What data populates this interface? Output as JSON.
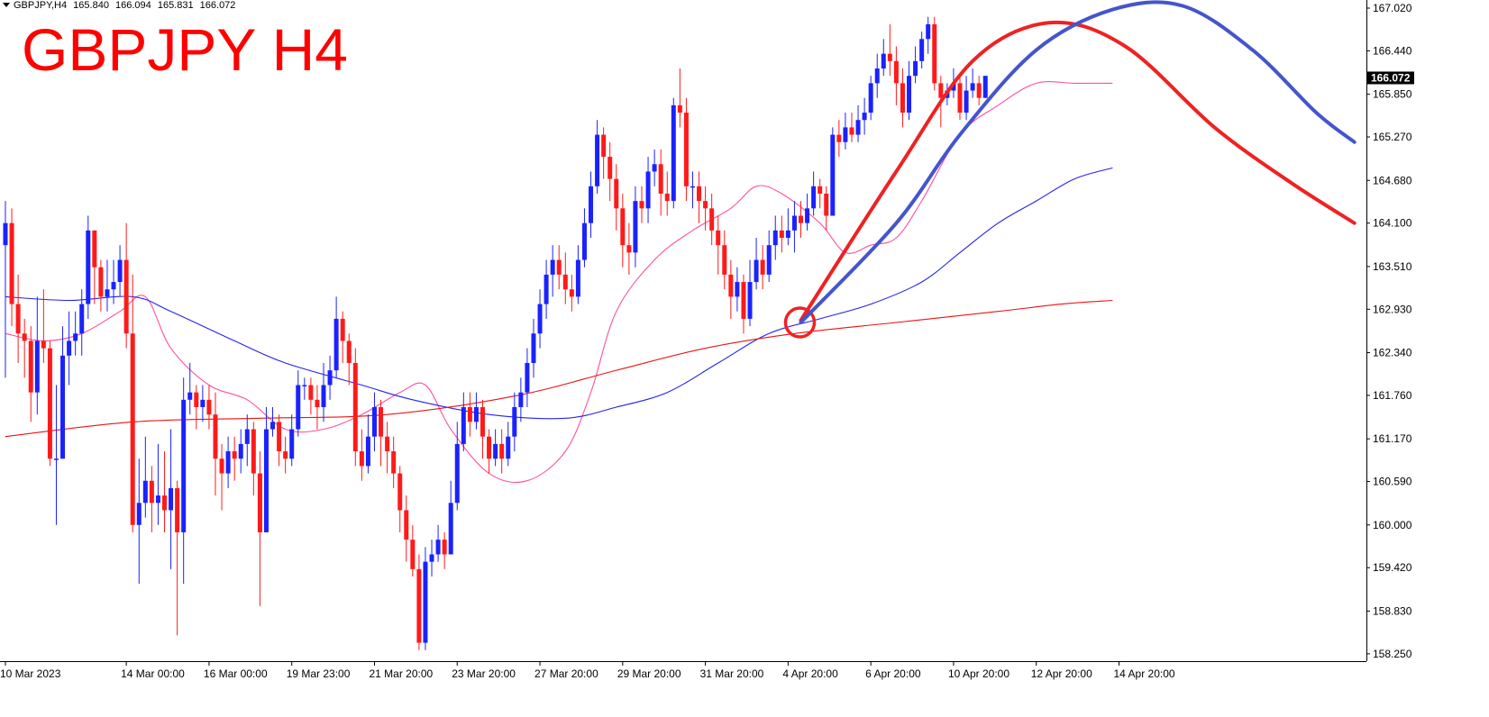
{
  "header": {
    "symbol": "GBPJPY,H4",
    "open": "165.840",
    "high": "166.094",
    "low": "165.831",
    "close": "166.072"
  },
  "title": "GBPJPY H4",
  "current_price_label": "166.072",
  "colors": {
    "bull": "#1a22ff",
    "bear": "#ff1a1a",
    "ma_fast": "#ff4fa0",
    "ma_mid": "#2222ee",
    "ma_slow": "#ee1111",
    "arc_red": "#ee2222",
    "arc_blue": "#4455cc",
    "price_tag": "#000000"
  },
  "chart_data": {
    "type": "candlestick",
    "y_ticks": [
      "167.020",
      "166.440",
      "165.850",
      "165.270",
      "164.680",
      "164.100",
      "163.510",
      "162.930",
      "162.340",
      "161.760",
      "161.170",
      "160.590",
      "160.000",
      "159.420",
      "158.830",
      "158.250"
    ],
    "ylim": [
      158.15,
      167.13
    ],
    "x_ticks": [
      {
        "label": "10 Mar 2023",
        "index": 0
      },
      {
        "label": "14 Mar 00:00",
        "index": 19
      },
      {
        "label": "16 Mar 00:00",
        "index": 32
      },
      {
        "label": "19 Mar 23:00",
        "index": 45
      },
      {
        "label": "21 Mar 20:00",
        "index": 58
      },
      {
        "label": "23 Mar 20:00",
        "index": 71
      },
      {
        "label": "27 Mar 20:00",
        "index": 84
      },
      {
        "label": "29 Mar 20:00",
        "index": 97
      },
      {
        "label": "31 Mar 20:00",
        "index": 110
      },
      {
        "label": "4 Apr 20:00",
        "index": 123
      },
      {
        "label": "6 Apr 20:00",
        "index": 136
      },
      {
        "label": "10 Apr 20:00",
        "index": 149
      },
      {
        "label": "12 Apr 20:00",
        "index": 162
      },
      {
        "label": "14 Apr 20:00",
        "index": 175
      }
    ],
    "indicators": [
      {
        "name": "fast MA",
        "color_key": "ma_fast",
        "points": [
          [
            0,
            162.6
          ],
          [
            6,
            162.5
          ],
          [
            12,
            162.6
          ],
          [
            18,
            162.9
          ],
          [
            22,
            163.1
          ],
          [
            26,
            162.4
          ],
          [
            32,
            161.9
          ],
          [
            38,
            161.7
          ],
          [
            44,
            161.3
          ],
          [
            50,
            161.3
          ],
          [
            56,
            161.5
          ],
          [
            62,
            161.8
          ],
          [
            66,
            161.9
          ],
          [
            70,
            161.3
          ],
          [
            76,
            160.7
          ],
          [
            82,
            160.6
          ],
          [
            88,
            161.0
          ],
          [
            92,
            161.8
          ],
          [
            96,
            162.9
          ],
          [
            102,
            163.6
          ],
          [
            108,
            164.0
          ],
          [
            114,
            164.3
          ],
          [
            118,
            164.6
          ],
          [
            122,
            164.5
          ],
          [
            128,
            164.1
          ],
          [
            132,
            163.7
          ],
          [
            136,
            163.8
          ],
          [
            140,
            163.9
          ],
          [
            144,
            164.4
          ],
          [
            150,
            165.3
          ],
          [
            156,
            165.7
          ],
          [
            162,
            166.0
          ],
          [
            168,
            166.0
          ],
          [
            174,
            166.0
          ]
        ]
      },
      {
        "name": "mid MA",
        "color_key": "ma_mid",
        "points": [
          [
            0,
            163.1
          ],
          [
            10,
            163.05
          ],
          [
            20,
            163.1
          ],
          [
            26,
            162.9
          ],
          [
            36,
            162.5
          ],
          [
            44,
            162.2
          ],
          [
            56,
            161.9
          ],
          [
            64,
            161.7
          ],
          [
            76,
            161.5
          ],
          [
            88,
            161.45
          ],
          [
            96,
            161.6
          ],
          [
            104,
            161.8
          ],
          [
            112,
            162.2
          ],
          [
            120,
            162.6
          ],
          [
            128,
            162.8
          ],
          [
            136,
            163.0
          ],
          [
            144,
            163.3
          ],
          [
            150,
            163.7
          ],
          [
            156,
            164.1
          ],
          [
            162,
            164.4
          ],
          [
            168,
            164.7
          ],
          [
            174,
            164.85
          ]
        ]
      },
      {
        "name": "slow MA",
        "color_key": "ma_slow",
        "points": [
          [
            0,
            161.2
          ],
          [
            20,
            161.4
          ],
          [
            40,
            161.45
          ],
          [
            60,
            161.5
          ],
          [
            80,
            161.75
          ],
          [
            96,
            162.1
          ],
          [
            110,
            162.4
          ],
          [
            124,
            162.6
          ],
          [
            140,
            162.75
          ],
          [
            156,
            162.9
          ],
          [
            166,
            163.0
          ],
          [
            174,
            163.05
          ]
        ]
      }
    ],
    "annotations": [
      {
        "kind": "circle",
        "index": 125,
        "price": 162.75
      },
      {
        "kind": "arc",
        "color_key": "arc_red",
        "points": [
          [
            125,
            162.78
          ],
          [
            140,
            164.8
          ],
          [
            152,
            166.3
          ],
          [
            164,
            166.82
          ],
          [
            176,
            166.5
          ],
          [
            190,
            165.4
          ],
          [
            202,
            164.65
          ],
          [
            212,
            164.1
          ]
        ]
      },
      {
        "kind": "arc",
        "color_key": "arc_blue",
        "points": [
          [
            125,
            162.75
          ],
          [
            140,
            164.1
          ],
          [
            150,
            165.3
          ],
          [
            162,
            166.45
          ],
          [
            174,
            167.0
          ],
          [
            185,
            167.05
          ],
          [
            196,
            166.45
          ],
          [
            206,
            165.6
          ],
          [
            212,
            165.2
          ]
        ]
      }
    ],
    "candles": [
      [
        163.8,
        164.1,
        164.4,
        162.0
      ],
      [
        164.1,
        163.0,
        164.3,
        162.7
      ],
      [
        163.0,
        162.6,
        163.4,
        162.2
      ],
      [
        162.6,
        162.5,
        162.8,
        162.0
      ],
      [
        162.5,
        161.8,
        162.7,
        161.4
      ],
      [
        161.8,
        162.5,
        163.1,
        161.5
      ],
      [
        162.5,
        162.4,
        163.2,
        162.2
      ],
      [
        162.4,
        160.9,
        162.5,
        160.8
      ],
      [
        160.9,
        160.9,
        161.9,
        160.0
      ],
      [
        160.9,
        162.3,
        162.7,
        160.9
      ],
      [
        162.3,
        162.5,
        162.9,
        161.9
      ],
      [
        162.5,
        162.6,
        162.9,
        162.3
      ],
      [
        162.6,
        163.0,
        163.2,
        162.3
      ],
      [
        163.0,
        164.0,
        164.2,
        162.8
      ],
      [
        164.0,
        163.5,
        164.0,
        163.0
      ],
      [
        163.5,
        163.1,
        163.6,
        162.9
      ],
      [
        163.1,
        163.2,
        163.6,
        162.9
      ],
      [
        163.2,
        163.3,
        163.6,
        163.0
      ],
      [
        163.3,
        163.6,
        163.8,
        163.1
      ],
      [
        163.6,
        162.6,
        164.1,
        162.4
      ],
      [
        162.6,
        160.0,
        163.4,
        159.9
      ],
      [
        160.0,
        160.3,
        160.9,
        159.2
      ],
      [
        160.3,
        160.6,
        161.2,
        160.1
      ],
      [
        160.6,
        160.3,
        160.8,
        159.9
      ],
      [
        160.3,
        160.4,
        161.1,
        160.0
      ],
      [
        160.4,
        160.2,
        161.0,
        159.9
      ],
      [
        160.2,
        160.5,
        161.3,
        159.4
      ],
      [
        160.5,
        159.9,
        160.6,
        158.5
      ],
      [
        159.9,
        161.7,
        162.0,
        159.2
      ],
      [
        161.7,
        161.8,
        162.2,
        161.5
      ],
      [
        161.8,
        161.6,
        161.9,
        161.3
      ],
      [
        161.6,
        161.7,
        161.9,
        161.4
      ],
      [
        161.7,
        161.5,
        161.9,
        161.3
      ],
      [
        161.5,
        160.9,
        161.8,
        160.4
      ],
      [
        160.9,
        160.7,
        161.1,
        160.2
      ],
      [
        160.7,
        161.0,
        161.2,
        160.5
      ],
      [
        161.0,
        160.9,
        161.2,
        160.6
      ],
      [
        160.9,
        161.1,
        161.3,
        160.7
      ],
      [
        161.1,
        161.3,
        161.5,
        160.8
      ],
      [
        161.3,
        160.7,
        161.4,
        160.4
      ],
      [
        160.7,
        159.9,
        161.0,
        158.9
      ],
      [
        159.9,
        161.3,
        161.6,
        159.9
      ],
      [
        161.3,
        161.4,
        161.6,
        161.2
      ],
      [
        161.4,
        161.0,
        161.5,
        160.8
      ],
      [
        161.0,
        160.9,
        161.2,
        160.7
      ],
      [
        160.9,
        161.3,
        161.5,
        160.8
      ],
      [
        161.3,
        161.9,
        162.1,
        161.2
      ],
      [
        161.9,
        161.9,
        162.0,
        161.7
      ],
      [
        161.9,
        161.7,
        162.0,
        161.5
      ],
      [
        161.7,
        161.6,
        161.9,
        161.3
      ],
      [
        161.6,
        161.9,
        162.2,
        161.4
      ],
      [
        161.9,
        162.1,
        162.3,
        161.7
      ],
      [
        162.1,
        162.8,
        163.1,
        162.0
      ],
      [
        162.8,
        162.5,
        162.9,
        162.2
      ],
      [
        162.5,
        162.2,
        162.6,
        161.9
      ],
      [
        162.2,
        161.0,
        162.4,
        160.8
      ],
      [
        161.0,
        160.8,
        161.3,
        160.6
      ],
      [
        160.8,
        161.2,
        161.5,
        160.7
      ],
      [
        161.2,
        161.6,
        161.8,
        161.0
      ],
      [
        161.6,
        161.2,
        161.7,
        160.8
      ],
      [
        161.2,
        161.0,
        161.4,
        160.7
      ],
      [
        161.0,
        160.7,
        161.2,
        160.5
      ],
      [
        160.7,
        160.2,
        160.8,
        159.9
      ],
      [
        160.2,
        159.8,
        160.4,
        159.5
      ],
      [
        159.8,
        159.4,
        160.0,
        159.3
      ],
      [
        159.4,
        158.4,
        159.6,
        158.3
      ],
      [
        158.4,
        159.5,
        159.7,
        158.3
      ],
      [
        159.5,
        159.6,
        159.8,
        159.3
      ],
      [
        159.6,
        159.8,
        160.0,
        159.5
      ],
      [
        159.8,
        159.6,
        159.9,
        159.4
      ],
      [
        159.6,
        160.3,
        160.6,
        159.6
      ],
      [
        160.3,
        161.1,
        161.4,
        160.2
      ],
      [
        161.1,
        161.6,
        161.8,
        161.0
      ],
      [
        161.6,
        161.4,
        161.8,
        161.2
      ],
      [
        161.4,
        161.6,
        161.8,
        161.3
      ],
      [
        161.6,
        161.2,
        161.7,
        160.9
      ],
      [
        161.2,
        160.9,
        161.3,
        160.7
      ],
      [
        160.9,
        161.1,
        161.3,
        160.8
      ],
      [
        161.1,
        160.9,
        161.3,
        160.7
      ],
      [
        160.9,
        161.2,
        161.4,
        160.8
      ],
      [
        161.2,
        161.6,
        161.8,
        161.0
      ],
      [
        161.6,
        161.8,
        162.0,
        161.4
      ],
      [
        161.8,
        162.2,
        162.4,
        161.6
      ],
      [
        162.2,
        162.6,
        162.8,
        162.0
      ],
      [
        162.6,
        163.0,
        163.2,
        162.4
      ],
      [
        163.0,
        163.4,
        163.6,
        162.8
      ],
      [
        163.4,
        163.6,
        163.8,
        163.1
      ],
      [
        163.6,
        163.4,
        163.8,
        163.2
      ],
      [
        163.4,
        163.2,
        163.7,
        163.0
      ],
      [
        163.2,
        163.1,
        163.4,
        162.9
      ],
      [
        163.1,
        163.6,
        163.8,
        163.0
      ],
      [
        163.6,
        164.1,
        164.3,
        163.5
      ],
      [
        164.1,
        164.6,
        164.8,
        163.9
      ],
      [
        164.6,
        165.3,
        165.5,
        164.5
      ],
      [
        165.3,
        165.0,
        165.4,
        164.7
      ],
      [
        165.0,
        164.7,
        165.2,
        164.4
      ],
      [
        164.7,
        164.3,
        164.9,
        164.0
      ],
      [
        164.3,
        163.8,
        164.5,
        163.5
      ],
      [
        163.8,
        163.7,
        164.1,
        163.4
      ],
      [
        163.7,
        164.4,
        164.6,
        163.5
      ],
      [
        164.4,
        164.3,
        164.6,
        164.1
      ],
      [
        164.3,
        164.8,
        165.0,
        164.1
      ],
      [
        164.8,
        164.9,
        165.1,
        164.6
      ],
      [
        164.9,
        164.5,
        165.1,
        164.2
      ],
      [
        164.5,
        164.4,
        164.8,
        164.2
      ],
      [
        164.4,
        165.7,
        165.8,
        164.3
      ],
      [
        165.7,
        165.6,
        166.2,
        165.4
      ],
      [
        165.6,
        164.6,
        165.8,
        164.4
      ],
      [
        164.6,
        164.6,
        164.8,
        164.3
      ],
      [
        164.6,
        164.4,
        164.8,
        164.1
      ],
      [
        164.4,
        164.3,
        164.6,
        164.0
      ],
      [
        164.3,
        164.0,
        164.5,
        163.8
      ],
      [
        164.0,
        163.8,
        164.2,
        163.4
      ],
      [
        163.8,
        163.4,
        164.0,
        163.2
      ],
      [
        163.4,
        163.1,
        163.6,
        162.8
      ],
      [
        163.1,
        163.3,
        163.5,
        162.9
      ],
      [
        163.3,
        162.8,
        163.4,
        162.6
      ],
      [
        162.8,
        163.3,
        163.6,
        162.7
      ],
      [
        163.3,
        163.6,
        163.9,
        163.2
      ],
      [
        163.6,
        163.4,
        163.8,
        163.2
      ],
      [
        163.4,
        163.8,
        164.0,
        163.3
      ],
      [
        163.8,
        164.0,
        164.2,
        163.6
      ],
      [
        164.0,
        163.9,
        164.2,
        163.7
      ],
      [
        163.9,
        164.0,
        164.3,
        163.8
      ],
      [
        164.0,
        164.2,
        164.4,
        163.7
      ],
      [
        164.2,
        164.1,
        164.4,
        163.9
      ],
      [
        164.1,
        164.3,
        164.5,
        164.0
      ],
      [
        164.3,
        164.6,
        164.8,
        164.2
      ],
      [
        164.6,
        164.5,
        164.7,
        164.3
      ],
      [
        164.5,
        164.2,
        164.6,
        164.0
      ],
      [
        164.2,
        165.3,
        165.4,
        164.2
      ],
      [
        165.3,
        165.2,
        165.5,
        165.0
      ],
      [
        165.2,
        165.4,
        165.6,
        165.1
      ],
      [
        165.4,
        165.3,
        165.6,
        165.2
      ],
      [
        165.3,
        165.5,
        165.7,
        165.2
      ],
      [
        165.5,
        165.6,
        165.8,
        165.3
      ],
      [
        165.6,
        166.0,
        166.1,
        165.5
      ],
      [
        166.0,
        166.2,
        166.4,
        165.8
      ],
      [
        166.2,
        166.4,
        166.6,
        166.1
      ],
      [
        166.4,
        166.3,
        166.8,
        166.1
      ],
      [
        166.3,
        166.0,
        166.5,
        165.7
      ],
      [
        166.0,
        165.6,
        166.2,
        165.4
      ],
      [
        165.6,
        166.1,
        166.3,
        165.5
      ],
      [
        166.1,
        166.3,
        166.5,
        166.0
      ],
      [
        166.3,
        166.6,
        166.7,
        166.2
      ],
      [
        166.6,
        166.8,
        166.9,
        166.4
      ],
      [
        166.8,
        166.0,
        166.9,
        165.9
      ],
      [
        166.0,
        165.8,
        166.1,
        165.4
      ],
      [
        165.8,
        165.9,
        166.0,
        165.7
      ],
      [
        165.9,
        166.0,
        166.2,
        165.8
      ],
      [
        166.0,
        165.6,
        166.1,
        165.5
      ],
      [
        165.6,
        165.9,
        166.1,
        165.5
      ],
      [
        165.9,
        166.0,
        166.2,
        165.8
      ],
      [
        166.0,
        165.8,
        166.1,
        165.7
      ],
      [
        165.8,
        166.1,
        166.1,
        165.8
      ]
    ]
  }
}
